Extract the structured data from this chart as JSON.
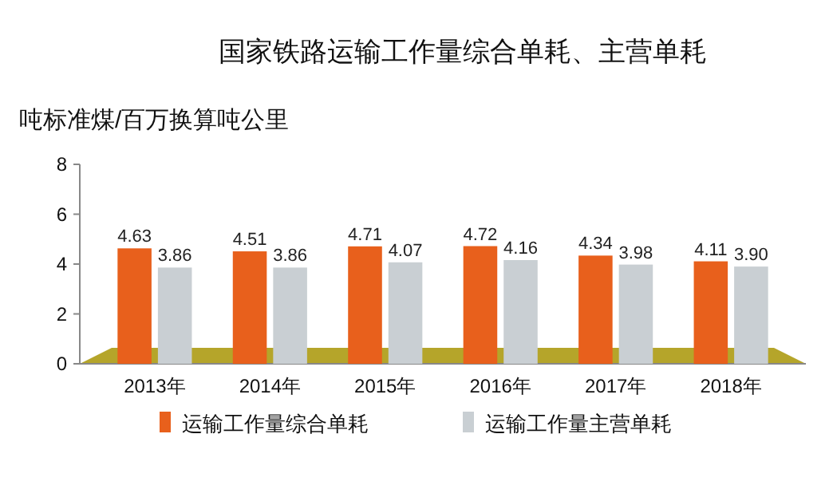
{
  "chart_data": {
    "type": "bar",
    "title": "国家铁路运输工作量综合单耗、主营单耗",
    "ylabel": "吨标准煤/百万换算吨公里",
    "categories": [
      "2013年",
      "2014年",
      "2015年",
      "2016年",
      "2017年",
      "2018年"
    ],
    "series": [
      {
        "name": "运输工作量综合单耗",
        "color": "#e8601c",
        "values": [
          4.63,
          4.51,
          4.71,
          4.72,
          4.34,
          4.11
        ],
        "value_labels": [
          "4.63",
          "4.51",
          "4.71",
          "4.72",
          "4.34",
          "4.11"
        ]
      },
      {
        "name": "运输工作量主营单耗",
        "color": "#c9cfd3",
        "values": [
          3.86,
          3.86,
          4.07,
          4.16,
          3.98,
          3.9
        ],
        "value_labels": [
          "3.86",
          "3.86",
          "4.07",
          "4.16",
          "3.98",
          "3.90"
        ]
      }
    ],
    "ylim": [
      0,
      8
    ],
    "yticks": [
      0,
      2,
      4,
      6,
      8
    ],
    "legend": "bottom"
  }
}
